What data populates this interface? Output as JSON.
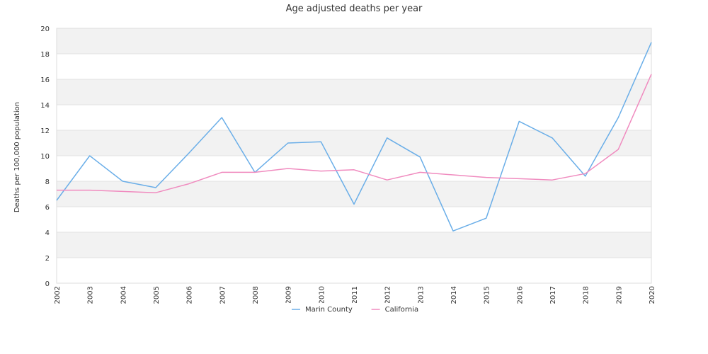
{
  "chart_data": {
    "type": "line",
    "title": "Age adjusted deaths per year",
    "xlabel": "",
    "ylabel": "Deaths per 100,000 population",
    "x": [
      "2002",
      "2003",
      "2004",
      "2005",
      "2006",
      "2007",
      "2008",
      "2009",
      "2010",
      "2011",
      "2012",
      "2013",
      "2014",
      "2015",
      "2016",
      "2017",
      "2018",
      "2019",
      "2020"
    ],
    "ylim": [
      0,
      20
    ],
    "yticks": [
      0,
      2,
      4,
      6,
      8,
      10,
      12,
      14,
      16,
      18,
      20
    ],
    "grid": "horizontal bands",
    "legend_position": "bottom",
    "series": [
      {
        "name": "Marin County",
        "color": "#6aaee8",
        "values": [
          6.5,
          10.0,
          8.0,
          7.5,
          10.2,
          13.0,
          8.7,
          11.0,
          11.1,
          6.2,
          11.4,
          9.9,
          4.1,
          5.1,
          12.7,
          11.4,
          8.4,
          13.0,
          18.9
        ]
      },
      {
        "name": "California",
        "color": "#f08bbf",
        "values": [
          7.3,
          7.3,
          7.2,
          7.1,
          7.8,
          8.7,
          8.7,
          9.0,
          8.8,
          8.9,
          8.1,
          8.7,
          8.5,
          8.3,
          8.2,
          8.1,
          8.6,
          10.5,
          16.4
        ]
      }
    ]
  }
}
